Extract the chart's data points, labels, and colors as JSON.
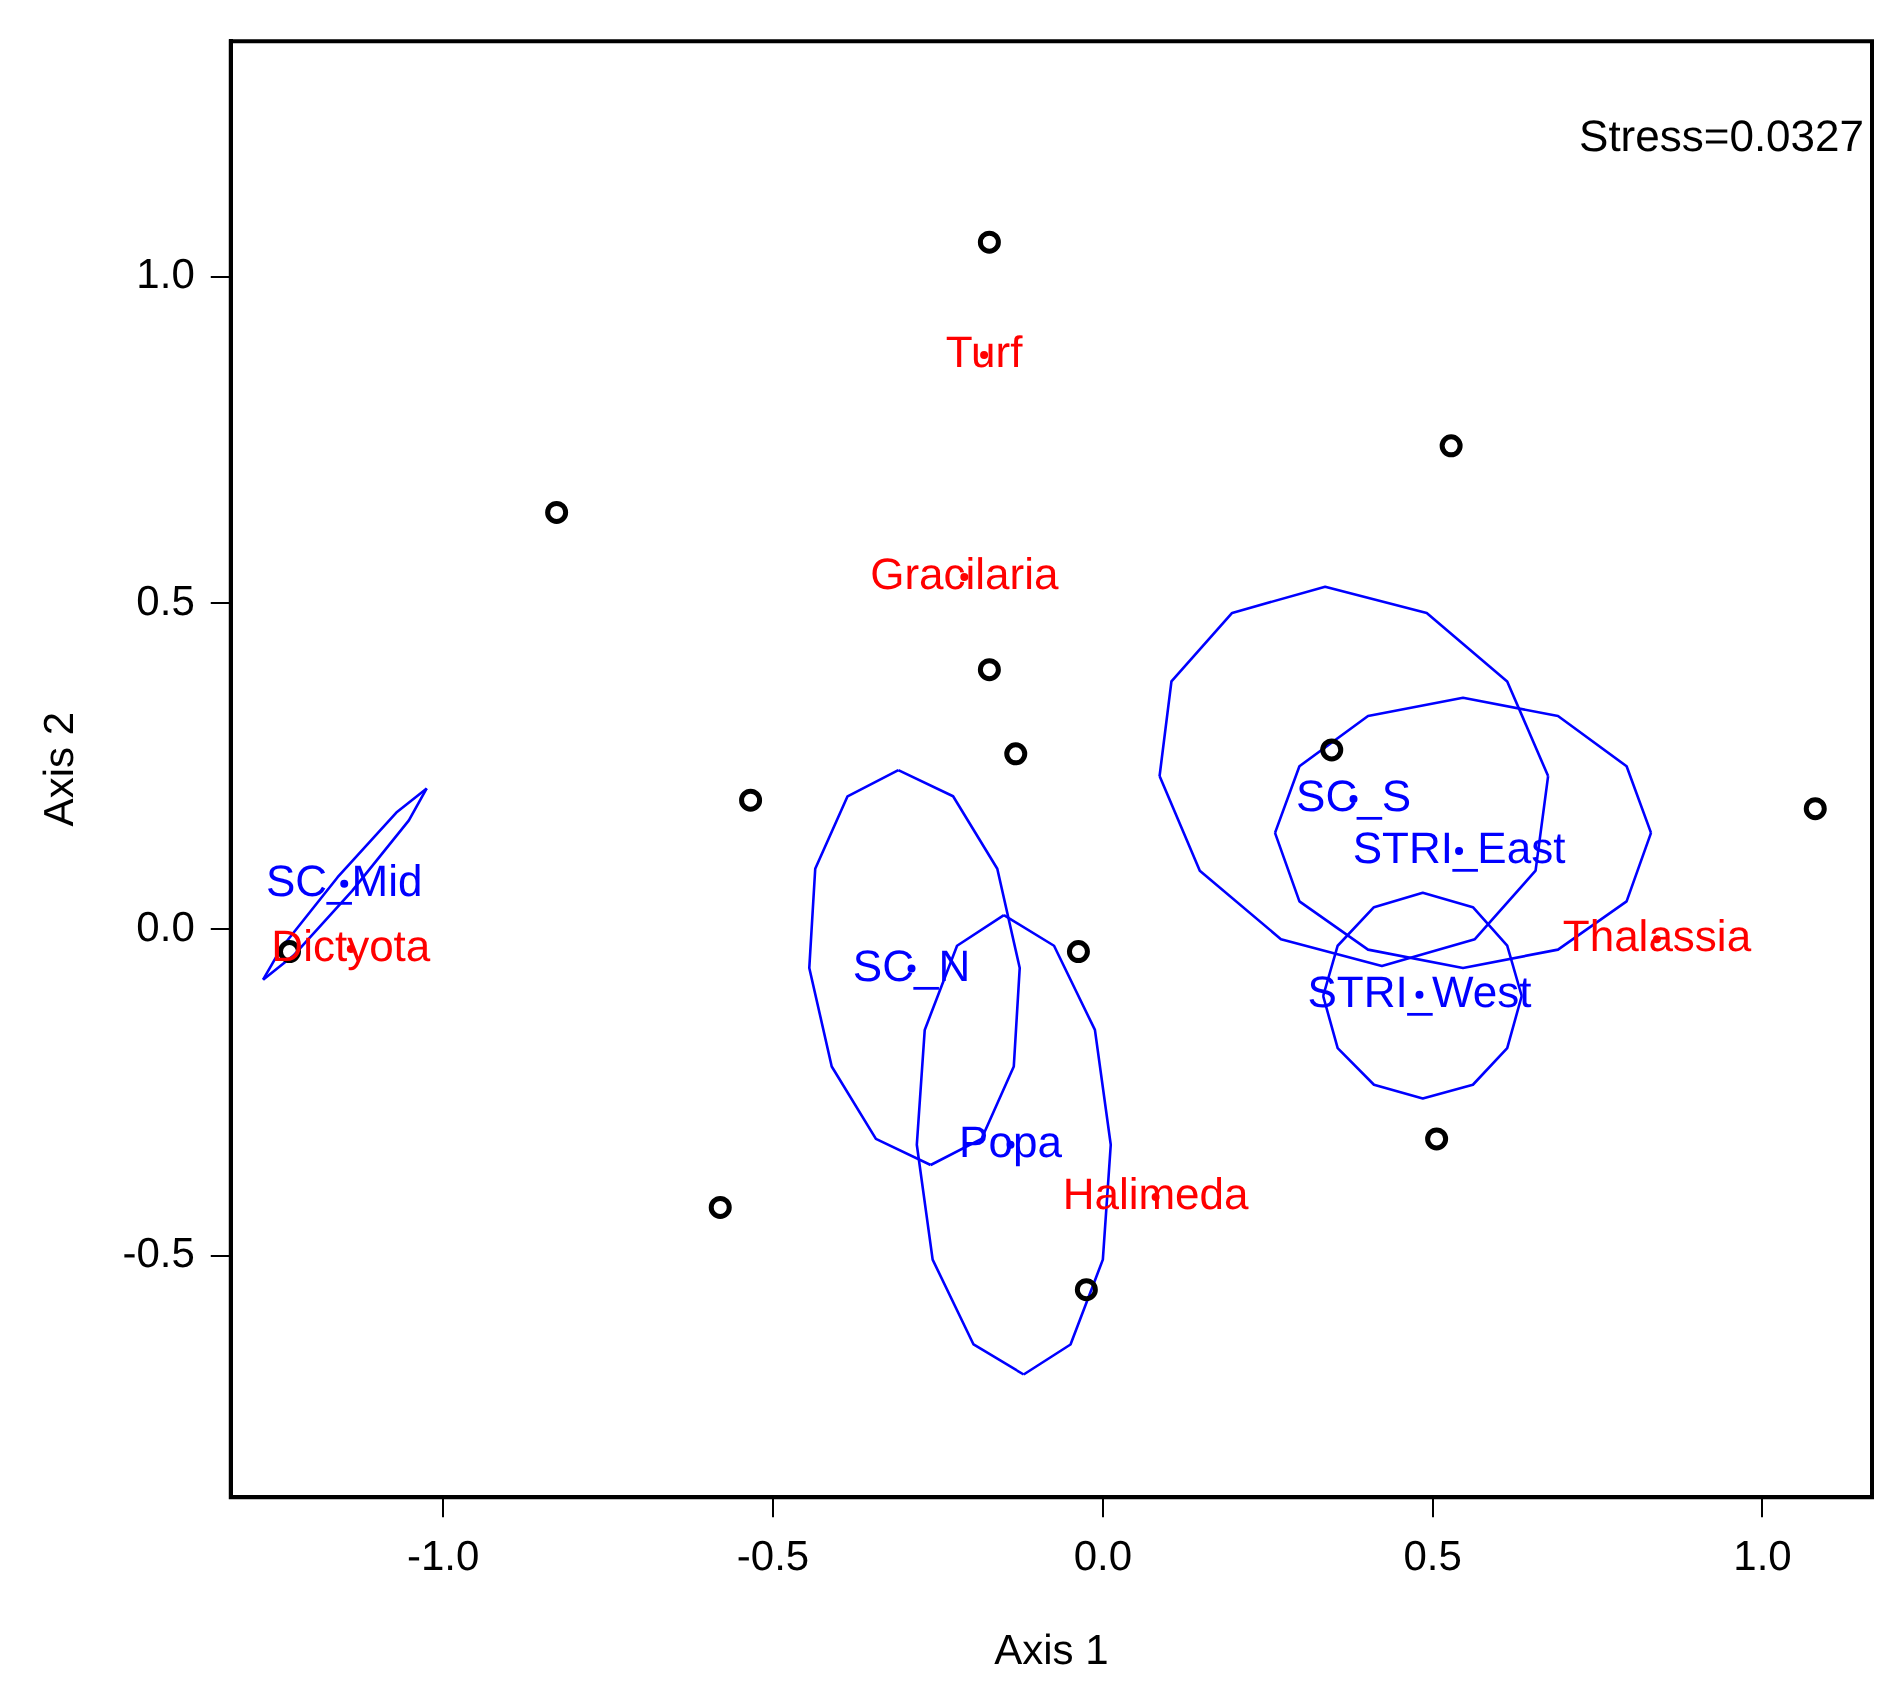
{
  "chart_data": {
    "type": "scatter",
    "xlabel": "Axis 1",
    "ylabel": "Axis 2",
    "xlim": [
      -1.322,
      1.166
    ],
    "ylim": [
      -0.87,
      1.361
    ],
    "xticks": [
      {
        "value": -1,
        "label": "-1.0"
      },
      -0.5,
      {
        "value": 0,
        "label": "0.0"
      },
      0.5,
      {
        "value": 1,
        "label": "1.0"
      }
    ],
    "yticks": [
      -0.5,
      {
        "value": 0,
        "label": "0.0"
      },
      0.5,
      {
        "value": 1,
        "label": "1.0"
      }
    ],
    "grid": false,
    "legend": false,
    "annotations": [
      "Stress=0.0327"
    ],
    "series": [
      {
        "type": "scatter",
        "marker": "circle",
        "color": "#000000",
        "x": [
          -0.172,
          -0.828,
          0.528,
          -0.172,
          -0.132,
          -0.534,
          0.347,
          1.08,
          -1.233,
          -0.037,
          0.506,
          -0.58,
          -0.025
        ],
        "values": [
          1.053,
          0.639,
          0.741,
          0.398,
          0.269,
          0.198,
          0.275,
          0.185,
          -0.034,
          -0.034,
          -0.321,
          -0.426,
          -0.552
        ]
      },
      {
        "type": "scatter",
        "marker": "circle",
        "color": "#ff0000",
        "x": [
          -0.18,
          -0.21,
          -1.14,
          0.84,
          0.08
        ],
        "values": [
          0.88,
          0.54,
          -0.03,
          -0.015,
          -0.41
        ],
        "value_labels": [
          "Turf",
          "Gracilaria",
          "Dictyota",
          "Thalassia",
          "Halimeda"
        ]
      },
      {
        "type": "scatter",
        "marker": "circle",
        "color": "#0000ff",
        "x": [
          -1.15,
          -0.29,
          -0.14,
          0.38,
          0.54,
          0.48
        ],
        "values": [
          0.07,
          -0.06,
          -0.33,
          0.2,
          0.12,
          -0.1
        ],
        "value_labels": [
          "SC_Mid",
          "SC_N",
          "Popa",
          "SC_S",
          "STRI_East",
          "STRI_West"
        ]
      },
      {
        "type": "line",
        "marker": "none",
        "color": "#0000ff",
        "x": [
          -1.273,
          -1.227,
          -1.138,
          -1.052,
          -1.025
        ],
        "values": [
          -0.077,
          -0.04,
          0.059,
          0.167,
          0.216
        ]
      },
      {
        "type": "line",
        "marker": "none",
        "color": "#0000ff",
        "x": [
          -1.273,
          -1.245,
          -1.16,
          -1.071,
          -1.025
        ],
        "values": [
          -0.077,
          -0.028,
          0.08,
          0.179,
          0.216
        ]
      },
      {
        "type": "line",
        "marker": "none",
        "color": "#0000ff",
        "x": [
          -0.31,
          -0.387,
          -0.436,
          -0.445,
          -0.411,
          -0.344,
          -0.261
        ],
        "values": [
          0.244,
          0.204,
          0.093,
          -0.059,
          -0.21,
          -0.321,
          -0.361
        ]
      },
      {
        "type": "line",
        "marker": "none",
        "color": "#0000ff",
        "x": [
          -0.31,
          -0.227,
          -0.16,
          -0.126,
          -0.135,
          -0.184,
          -0.261
        ],
        "values": [
          0.244,
          0.204,
          0.093,
          -0.059,
          -0.21,
          -0.321,
          -0.361
        ]
      },
      {
        "type": "line",
        "marker": "none",
        "color": "#0000ff",
        "x": [
          -0.15,
          -0.221,
          -0.27,
          -0.282,
          -0.258,
          -0.196,
          -0.12
        ],
        "values": [
          0.022,
          -0.025,
          -0.154,
          -0.33,
          -0.506,
          -0.636,
          -0.682
        ]
      },
      {
        "type": "line",
        "marker": "none",
        "color": "#0000ff",
        "x": [
          -0.15,
          -0.074,
          -0.012,
          0.012,
          0.0,
          -0.049,
          -0.12
        ],
        "values": [
          0.022,
          -0.025,
          -0.154,
          -0.33,
          -0.506,
          -0.636,
          -0.682
        ]
      },
      {
        "type": "line",
        "marker": "none",
        "color": "#0000ff",
        "x": [
          0.086,
          0.104,
          0.196,
          0.337,
          0.491,
          0.613,
          0.675
        ],
        "values": [
          0.235,
          0.38,
          0.485,
          0.525,
          0.485,
          0.38,
          0.235
        ]
      },
      {
        "type": "line",
        "marker": "none",
        "color": "#0000ff",
        "x": [
          0.086,
          0.147,
          0.27,
          0.423,
          0.564,
          0.656,
          0.675
        ],
        "values": [
          0.235,
          0.09,
          -0.015,
          -0.056,
          -0.015,
          0.09,
          0.235
        ]
      },
      {
        "type": "line",
        "marker": "none",
        "color": "#0000ff",
        "x": [
          0.261,
          0.298,
          0.402,
          0.546,
          0.69,
          0.794,
          0.831
        ],
        "values": [
          0.148,
          0.25,
          0.327,
          0.355,
          0.327,
          0.25,
          0.148
        ]
      },
      {
        "type": "line",
        "marker": "none",
        "color": "#0000ff",
        "x": [
          0.261,
          0.298,
          0.402,
          0.546,
          0.69,
          0.794,
          0.831
        ],
        "values": [
          0.148,
          0.043,
          -0.031,
          -0.059,
          -0.031,
          0.043,
          0.148
        ]
      },
      {
        "type": "line",
        "marker": "none",
        "color": "#0000ff",
        "x": [
          0.334,
          0.356,
          0.411,
          0.485,
          0.561,
          0.613,
          0.635
        ],
        "values": [
          -0.102,
          -0.025,
          0.034,
          0.056,
          0.034,
          -0.025,
          -0.102
        ]
      },
      {
        "type": "line",
        "marker": "none",
        "color": "#0000ff",
        "x": [
          0.334,
          0.356,
          0.411,
          0.485,
          0.561,
          0.613,
          0.635
        ],
        "values": [
          -0.102,
          -0.182,
          -0.238,
          -0.259,
          -0.238,
          -0.182,
          -0.102
        ]
      }
    ]
  }
}
